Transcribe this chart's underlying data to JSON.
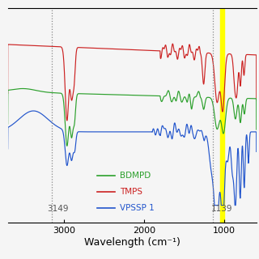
{
  "title": "",
  "xlabel": "Wavelength (cm⁻¹)",
  "xlim": [
    3700,
    600
  ],
  "dashed_lines": [
    3149,
    1139
  ],
  "yellow_band": [
    1055,
    1005
  ],
  "legend": {
    "BDMPD": "#2ca02c",
    "TMPS": "#cc2222",
    "VPSSP 1": "#2255cc"
  },
  "background_color": "#f5f5f5",
  "tick_label_fontsize": 8,
  "axis_label_fontsize": 9,
  "legend_fontsize": 7.5,
  "dashed_label_fontsize": 7.5
}
